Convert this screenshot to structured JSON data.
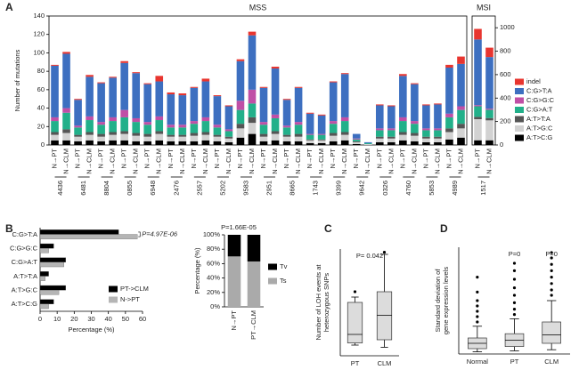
{
  "chart_data": [
    {
      "type": "stacked-bar",
      "panel_label": "A",
      "title": "MSS",
      "ylabel": "Number of mutations",
      "categories": [
        "N→PT",
        "N→CLM",
        "N→PT",
        "N→CLM",
        "N→PT",
        "N→CLM",
        "N→PT",
        "N→CLM",
        "N→PT",
        "N→CLM",
        "N→PT",
        "N→CLM",
        "N→PT",
        "N→CLM",
        "N→PT",
        "N→CLM",
        "N→PT",
        "N→CLM",
        "N→PT",
        "N→CLM",
        "N→PT",
        "N→CLM",
        "N→PT",
        "N→CLM",
        "N→PT",
        "N→CLM",
        "N→PT",
        "N→CLM",
        "N→PT",
        "N→CLM",
        "N→PT",
        "N→CLM",
        "N→PT",
        "N→CLM",
        "N→PT",
        "N→CLM"
      ],
      "groups": [
        "4436",
        "6481",
        "8804",
        "0855",
        "6948",
        "2476",
        "2557",
        "5202",
        "9583",
        "2951",
        "8665",
        "1743",
        "9399",
        "9642",
        "0326",
        "4760",
        "5853",
        "4989"
      ],
      "ylim": [
        0,
        140
      ],
      "yticks": [
        0,
        20,
        40,
        60,
        80,
        100,
        120,
        140
      ],
      "series": [
        {
          "name": "indel",
          "color": "#e8352f",
          "values": [
            1,
            2,
            1,
            2,
            1,
            1,
            2,
            1,
            1,
            6,
            2,
            2,
            1,
            3,
            1,
            1,
            2,
            4,
            1,
            2,
            1,
            1,
            1,
            1,
            1,
            1,
            0,
            0,
            1,
            1,
            2,
            1,
            1,
            1,
            3,
            8
          ]
        },
        {
          "name": "C:G>T:A",
          "color": "#3d6fc0",
          "values": [
            56,
            59,
            28,
            43,
            42,
            43,
            51,
            49,
            41,
            38,
            33,
            32,
            36,
            39,
            31,
            25,
            43,
            59,
            37,
            50,
            28,
            37,
            22,
            20,
            42,
            47,
            5,
            1,
            25,
            24,
            45,
            40,
            25,
            26,
            50,
            46
          ]
        },
        {
          "name": "C:G>G:C",
          "color": "#c04fa6",
          "values": [
            4,
            5,
            2,
            4,
            3,
            4,
            8,
            4,
            3,
            4,
            3,
            3,
            3,
            4,
            3,
            2,
            10,
            15,
            3,
            4,
            2,
            3,
            1,
            1,
            3,
            4,
            1,
            0,
            2,
            2,
            4,
            3,
            2,
            2,
            4,
            4
          ]
        },
        {
          "name": "C:G>A:T",
          "color": "#22b08a",
          "values": [
            12,
            18,
            8,
            13,
            10,
            12,
            15,
            12,
            10,
            12,
            8,
            8,
            10,
            12,
            8,
            6,
            15,
            15,
            10,
            14,
            8,
            10,
            5,
            5,
            10,
            12,
            2,
            1,
            7,
            7,
            12,
            10,
            7,
            7,
            12,
            15
          ]
        },
        {
          "name": "A:T>T:A",
          "color": "#555555",
          "values": [
            3,
            4,
            2,
            3,
            3,
            3,
            3,
            3,
            3,
            3,
            2,
            2,
            3,
            3,
            2,
            2,
            5,
            6,
            3,
            3,
            2,
            3,
            1,
            1,
            3,
            3,
            1,
            0,
            2,
            2,
            3,
            3,
            2,
            2,
            4,
            5
          ]
        },
        {
          "name": "A:T>G:C",
          "color": "#d2d2d2",
          "values": [
            6,
            8,
            5,
            6,
            5,
            6,
            7,
            6,
            5,
            7,
            5,
            5,
            6,
            6,
            5,
            4,
            10,
            12,
            5,
            7,
            5,
            5,
            3,
            3,
            6,
            6,
            2,
            1,
            4,
            4,
            6,
            6,
            4,
            4,
            8,
            10
          ]
        },
        {
          "name": "A:T>C:G",
          "color": "#000000",
          "values": [
            5,
            5,
            4,
            5,
            4,
            5,
            5,
            4,
            4,
            5,
            4,
            4,
            4,
            5,
            4,
            3,
            8,
            12,
            4,
            5,
            4,
            4,
            2,
            2,
            4,
            5,
            1,
            0,
            3,
            3,
            5,
            4,
            3,
            3,
            6,
            8
          ]
        }
      ]
    },
    {
      "type": "stacked-bar",
      "title": "MSI",
      "categories": [
        "N→PT",
        "N→CLM"
      ],
      "groups": [
        "1517"
      ],
      "ylim": [
        0,
        1100
      ],
      "yticks": [
        0,
        200,
        400,
        600,
        800,
        1000
      ],
      "series": [
        {
          "color": "#e8352f",
          "values": [
            90,
            80
          ]
        },
        {
          "color": "#3d6fc0",
          "values": [
            560,
            440
          ]
        },
        {
          "color": "#c04fa6",
          "values": [
            10,
            10
          ]
        },
        {
          "color": "#22b08a",
          "values": [
            90,
            70
          ]
        },
        {
          "color": "#555555",
          "values": [
            20,
            20
          ]
        },
        {
          "color": "#d2d2d2",
          "values": [
            180,
            170
          ]
        },
        {
          "color": "#000000",
          "values": [
            40,
            40
          ]
        }
      ]
    },
    {
      "type": "hbar",
      "panel_label": "B",
      "xlabel": "Percentage (%)",
      "annotation": "P=4.97E-06",
      "categories": [
        "C:G>T:A",
        "C:G>G:C",
        "C:G>A:T",
        "A:T>T:A",
        "A:T>G:C",
        "A:T>C:G"
      ],
      "xlim": [
        0,
        60
      ],
      "xticks": [
        0,
        10,
        20,
        30,
        40,
        50,
        60
      ],
      "series": [
        {
          "name": "PT->CLM",
          "color": "#000000",
          "values": [
            46,
            8,
            15,
            5,
            15,
            8
          ]
        },
        {
          "name": "N->PT",
          "color": "#b5b5b5",
          "values": [
            57,
            5,
            14,
            3,
            11,
            5
          ]
        }
      ]
    },
    {
      "type": "stacked-bar",
      "ylabel": "Percentage (%)",
      "annotation": "P=1.66E-05",
      "categories": [
        "N→PT",
        "PT→CLM"
      ],
      "ylim": [
        0,
        100
      ],
      "yticks": [
        {
          "value": 0,
          "label": "0%"
        },
        {
          "value": 20,
          "label": "20%"
        },
        {
          "value": 40,
          "label": "40%"
        },
        {
          "value": 60,
          "label": "60%"
        },
        {
          "value": 80,
          "label": "80%"
        },
        {
          "value": 100,
          "label": "100%"
        }
      ],
      "series": [
        {
          "name": "Tv",
          "color": "#000000",
          "values": [
            30,
            37
          ]
        },
        {
          "name": "Ts",
          "color": "#aaaaaa",
          "values": [
            70,
            63
          ]
        }
      ]
    },
    {
      "type": "box",
      "panel_label": "C",
      "ylabel": [
        "Number of LOH events at",
        "heterozygous SNPs"
      ],
      "annotations": [
        "P= 0.042"
      ],
      "categories": [
        "PT",
        "CLM"
      ],
      "ylim": [
        0,
        1
      ],
      "boxes": [
        {
          "min": 0.1,
          "q1": 0.12,
          "median": 0.2,
          "q3": 0.5,
          "max": 0.55,
          "outliers": [
            0.6
          ]
        },
        {
          "min": 0.08,
          "q1": 0.15,
          "median": 0.38,
          "q3": 0.6,
          "max": 0.95,
          "outliers": [
            0.97
          ]
        }
      ]
    },
    {
      "type": "box",
      "panel_label": "D",
      "ylabel": [
        "Standard deviation of",
        "gene expression levels"
      ],
      "annotations": [
        "P=0",
        "P=0"
      ],
      "categories": [
        "Normal",
        "PT",
        "CLM"
      ],
      "ylim": [
        0,
        1
      ],
      "boxes": [
        {
          "min": 0.02,
          "q1": 0.05,
          "median": 0.1,
          "q3": 0.15,
          "max": 0.26,
          "outliers": [
            0.3,
            0.35,
            0.4,
            0.45,
            0.5,
            0.58,
            0.72
          ]
        },
        {
          "min": 0.03,
          "q1": 0.07,
          "median": 0.13,
          "q3": 0.19,
          "max": 0.33,
          "outliers": [
            0.37,
            0.42,
            0.48,
            0.55,
            0.62,
            0.7,
            0.78,
            0.85
          ]
        },
        {
          "min": 0.04,
          "q1": 0.1,
          "median": 0.18,
          "q3": 0.3,
          "max": 0.5,
          "outliers": [
            0.55,
            0.6,
            0.66,
            0.72,
            0.78,
            0.84,
            0.9,
            0.95
          ]
        }
      ]
    }
  ]
}
